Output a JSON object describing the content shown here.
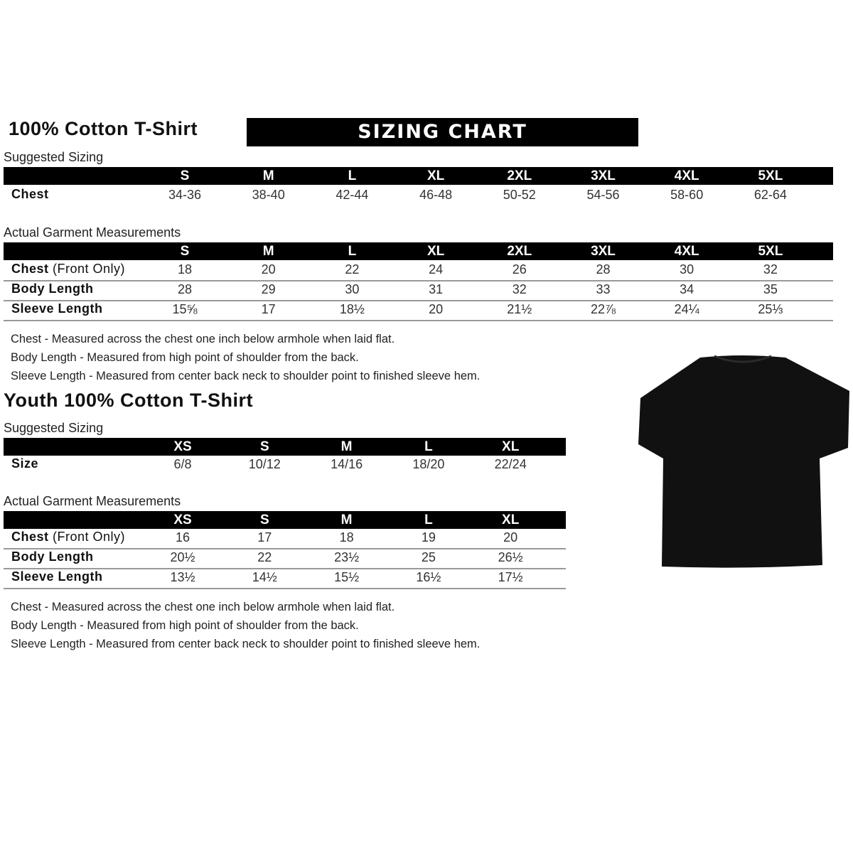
{
  "adult": {
    "title": "100% Cotton T-Shirt",
    "banner": "SIZING CHART",
    "suggested_label": "Suggested Sizing",
    "sizes": [
      "S",
      "M",
      "L",
      "XL",
      "2XL",
      "3XL",
      "4XL",
      "5XL"
    ],
    "suggested_rows": [
      {
        "label": "Chest",
        "values": [
          "34-36",
          "38-40",
          "42-44",
          "46-48",
          "50-52",
          "54-56",
          "58-60",
          "62-64"
        ]
      }
    ],
    "actual_label": "Actual Garment Measurements",
    "actual_rows": [
      {
        "label": "Chest",
        "label_extra": " (Front Only)",
        "values": [
          "18",
          "20",
          "22",
          "24",
          "26",
          "28",
          "30",
          "32"
        ]
      },
      {
        "label": "Body Length",
        "label_extra": "",
        "values": [
          "28",
          "29",
          "30",
          "31",
          "32",
          "33",
          "34",
          "35"
        ]
      },
      {
        "label": "Sleeve Length",
        "label_extra": "",
        "values": [
          "15⅝",
          "17",
          "18½",
          "20",
          "21½",
          "22⅞",
          "24¼",
          "25⅓"
        ]
      }
    ],
    "notes": [
      "Chest - Measured across the chest one inch below armhole when laid flat.",
      "Body Length - Measured from high point of shoulder from the back.",
      "Sleeve Length - Measured from center back neck to shoulder point to finished sleeve hem."
    ]
  },
  "youth": {
    "title": "Youth 100% Cotton T-Shirt",
    "suggested_label": "Suggested Sizing",
    "sizes": [
      "XS",
      "S",
      "M",
      "L",
      "XL"
    ],
    "suggested_rows": [
      {
        "label": "Size",
        "values": [
          "6/8",
          "10/12",
          "14/16",
          "18/20",
          "22/24"
        ]
      }
    ],
    "actual_label": "Actual Garment Measurements",
    "actual_rows": [
      {
        "label": "Chest",
        "label_extra": " (Front Only)",
        "values": [
          "16",
          "17",
          "18",
          "19",
          "20"
        ]
      },
      {
        "label": "Body Length",
        "label_extra": "",
        "values": [
          "20½",
          "22",
          "23½",
          "25",
          "26½"
        ]
      },
      {
        "label": "Sleeve Length",
        "label_extra": "",
        "values": [
          "13½",
          "14½",
          "15½",
          "16½",
          "17½"
        ]
      }
    ],
    "notes": [
      "Chest - Measured across the chest one inch below armhole when laid flat.",
      "Body Length - Measured from high point of shoulder from the back.",
      "Sleeve Length - Measured from center back neck to shoulder point to finished sleeve hem."
    ]
  },
  "colors": {
    "header": "#000000",
    "divider": "#999999",
    "shirt": "#111111"
  },
  "image": {
    "icon": "black-tshirt-icon"
  }
}
